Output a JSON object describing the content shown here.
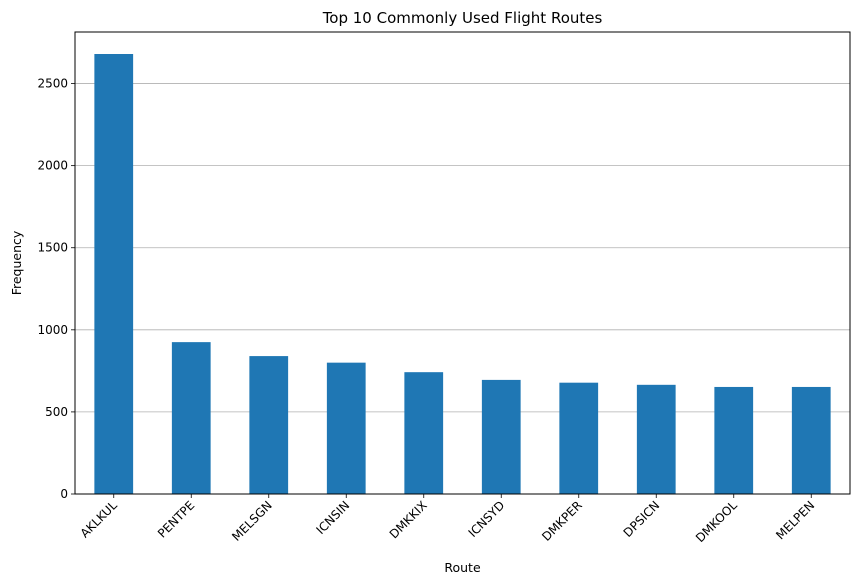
{
  "chart_data": {
    "type": "bar",
    "title": "Top 10 Commonly Used Flight Routes",
    "xlabel": "Route",
    "ylabel": "Frequency",
    "categories": [
      "AKLKUL",
      "PENTPE",
      "MELSGN",
      "ICNSIN",
      "DMKKIX",
      "ICNSYD",
      "DMKPER",
      "DPSICN",
      "DMKOOL",
      "MELPEN"
    ],
    "values": [
      2680,
      925,
      840,
      800,
      742,
      695,
      678,
      665,
      652,
      652
    ],
    "ylim": [
      0,
      2814
    ],
    "yticks": [
      0,
      500,
      1000,
      1500,
      2000,
      2500
    ],
    "grid": "y-axis horizontal lines",
    "bar_color": "#1f77b4",
    "legend": "none"
  }
}
